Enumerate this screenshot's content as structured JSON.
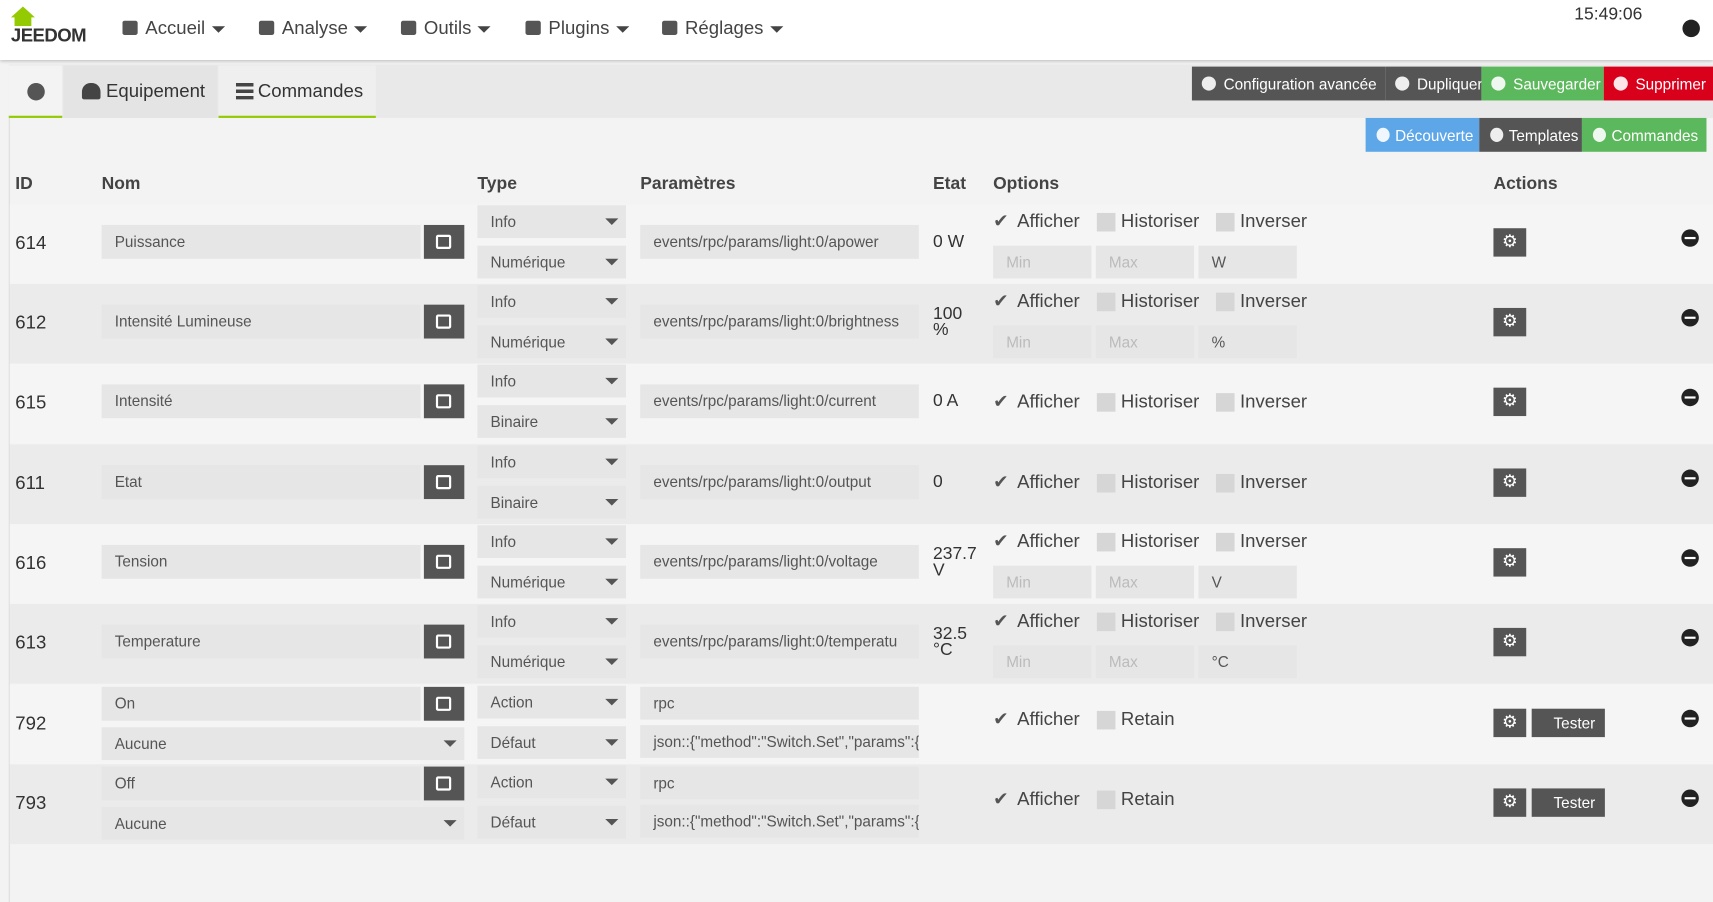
{
  "navbar": {
    "brand": "JEEDOM",
    "menu": [
      "Accueil",
      "Analyse",
      "Outils",
      "Plugins",
      "Réglages"
    ],
    "time": "15:49:06"
  },
  "tabs": [
    "Equipement",
    "Commandes"
  ],
  "actions": [
    "Configuration avancée",
    "Dupliquer",
    "Sauvegarder",
    "Supprimer"
  ],
  "command_buttons": [
    "Découverte",
    "Templates",
    "Commandes"
  ],
  "table": {
    "headers": [
      "ID",
      "Nom",
      "Type",
      "Paramètres",
      "Etat",
      "Options",
      "Actions"
    ],
    "placeholders": {
      "min": "Min",
      "max": "Max"
    },
    "test_label": "Tester",
    "rows": [
      {
        "id": "614",
        "name": "Puissance",
        "type": "Info",
        "subtype": "Numérique",
        "params": [
          "events/rpc/params/light:0/apower"
        ],
        "state": "0 W",
        "options": [
          {
            "label": "Afficher",
            "checked": true
          },
          {
            "label": "Historiser",
            "checked": false
          },
          {
            "label": "Inverser",
            "checked": false
          }
        ],
        "unit": "W"
      },
      {
        "id": "612",
        "name": "Intensité Lumineuse",
        "type": "Info",
        "subtype": "Numérique",
        "params": [
          "events/rpc/params/light:0/brightness"
        ],
        "state": "100 %",
        "options": [
          {
            "label": "Afficher",
            "checked": true
          },
          {
            "label": "Historiser",
            "checked": false
          },
          {
            "label": "Inverser",
            "checked": false
          }
        ],
        "unit": "%"
      },
      {
        "id": "615",
        "name": "Intensité",
        "type": "Info",
        "subtype": "Binaire",
        "params": [
          "events/rpc/params/light:0/current"
        ],
        "state": "0 A",
        "options": [
          {
            "label": "Afficher",
            "checked": true
          },
          {
            "label": "Historiser",
            "checked": false
          },
          {
            "label": "Inverser",
            "checked": false
          }
        ]
      },
      {
        "id": "611",
        "name": "Etat",
        "type": "Info",
        "subtype": "Binaire",
        "params": [
          "events/rpc/params/light:0/output"
        ],
        "state": "0",
        "options": [
          {
            "label": "Afficher",
            "checked": true
          },
          {
            "label": "Historiser",
            "checked": false
          },
          {
            "label": "Inverser",
            "checked": false
          }
        ]
      },
      {
        "id": "616",
        "name": "Tension",
        "type": "Info",
        "subtype": "Numérique",
        "params": [
          "events/rpc/params/light:0/voltage"
        ],
        "state": "237.7 V",
        "options": [
          {
            "label": "Afficher",
            "checked": true
          },
          {
            "label": "Historiser",
            "checked": false
          },
          {
            "label": "Inverser",
            "checked": false
          }
        ],
        "unit": "V"
      },
      {
        "id": "613",
        "name": "Temperature",
        "type": "Info",
        "subtype": "Numérique",
        "params": [
          "events/rpc/params/light:0/temperatu"
        ],
        "state": "32.5 °C",
        "options": [
          {
            "label": "Afficher",
            "checked": true
          },
          {
            "label": "Historiser",
            "checked": false
          },
          {
            "label": "Inverser",
            "checked": false
          }
        ],
        "unit": "°C"
      },
      {
        "id": "792",
        "name": "On",
        "generic": "Aucune",
        "type": "Action",
        "subtype": "Défaut",
        "params": [
          "rpc",
          "json::{\"method\":\"Switch.Set\",\"params\":{"
        ],
        "options": [
          {
            "label": "Afficher",
            "checked": true
          },
          {
            "label": "Retain",
            "checked": false
          }
        ],
        "test": true
      },
      {
        "id": "793",
        "name": "Off",
        "generic": "Aucune",
        "type": "Action",
        "subtype": "Défaut",
        "params": [
          "rpc",
          "json::{\"method\":\"Switch.Set\",\"params\":{"
        ],
        "options": [
          {
            "label": "Afficher",
            "checked": true
          },
          {
            "label": "Retain",
            "checked": false
          }
        ],
        "test": true
      }
    ]
  }
}
